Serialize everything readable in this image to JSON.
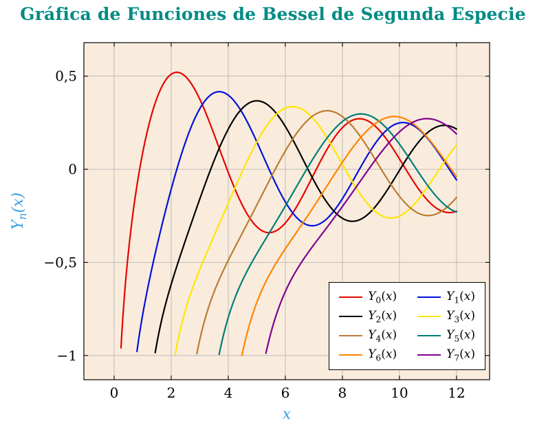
{
  "title": "Gráfica de Funciones de Bessel de Segunda Especie",
  "chart_data": {
    "type": "line",
    "title": "Gráfica de Funciones de Bessel de Segunda Especie",
    "xlabel": "x",
    "ylabel": "Y_n(x)",
    "function_family": "Bessel functions of the second kind Y_n(x), orders 0 to 7",
    "xlim": [
      -1.06,
      13.16
    ],
    "ylim": [
      -1.13,
      0.68
    ],
    "x_ticks": [
      0,
      2,
      4,
      6,
      8,
      10,
      12
    ],
    "x_tick_labels": [
      "0",
      "2",
      "4",
      "6",
      "8",
      "10",
      "12"
    ],
    "y_ticks": [
      -1,
      -0.5,
      0,
      0.5
    ],
    "y_tick_labels": [
      "−1",
      "−0,5",
      "0",
      "0,5"
    ],
    "grid": true,
    "x_sample_range": [
      0.06,
      12
    ],
    "x_sample_step": 0.02,
    "y_start_clip": -1.0,
    "legend_position": "bottom-right inside",
    "plot_bg": "#f9ecdd",
    "grid_color": "#b6b6b6",
    "axis_color": "#000000",
    "tick_label_color": "#000000",
    "title_color": "#008b83",
    "axis_label_color": "#3aa0e6",
    "series": [
      {
        "name": "Y_0(x)",
        "order": 0,
        "color": "#e60400"
      },
      {
        "name": "Y_1(x)",
        "order": 1,
        "color": "#0010dd"
      },
      {
        "name": "Y_2(x)",
        "order": 2,
        "color": "#000000"
      },
      {
        "name": "Y_3(x)",
        "order": 3,
        "color": "#ffe600"
      },
      {
        "name": "Y_4(x)",
        "order": 4,
        "color": "#bb7c33"
      },
      {
        "name": "Y_5(x)",
        "order": 5,
        "color": "#007d78"
      },
      {
        "name": "Y_6(x)",
        "order": 6,
        "color": "#ff8500"
      },
      {
        "name": "Y_7(x)",
        "order": 7,
        "color": "#800090"
      }
    ]
  }
}
